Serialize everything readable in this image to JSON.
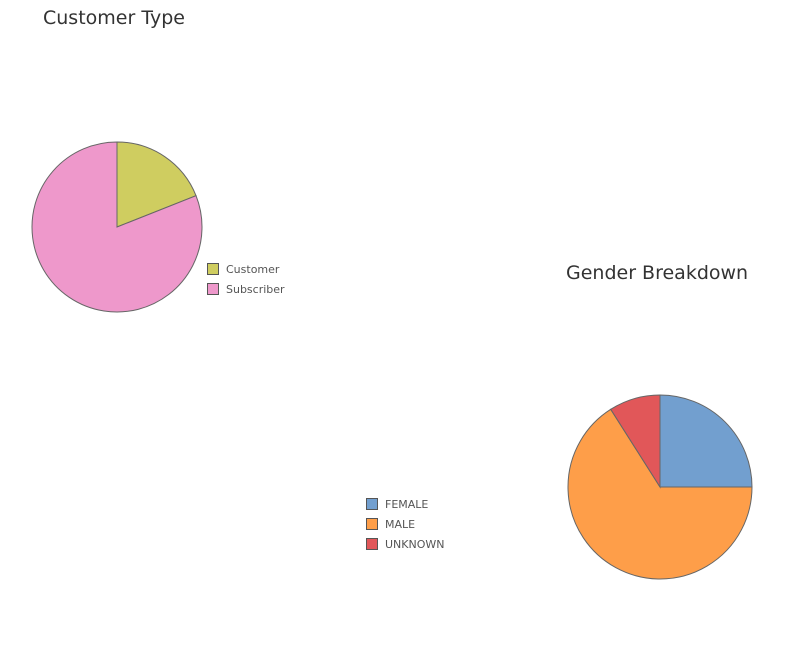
{
  "chart_data": [
    {
      "type": "pie",
      "title": "Customer Type",
      "slices": [
        {
          "label": "Customer",
          "value": 19,
          "color": "#cfcd60"
        },
        {
          "label": "Subscriber",
          "value": 81,
          "color": "#ee98cb"
        }
      ],
      "legend_placement": "right"
    },
    {
      "type": "pie",
      "title": "Gender Breakdown",
      "slices": [
        {
          "label": "FEMALE",
          "value": 25,
          "color": "#729fcf"
        },
        {
          "label": "MALE",
          "value": 66,
          "color": "#fe9e49"
        },
        {
          "label": "UNKNOWN",
          "value": 9,
          "color": "#e15759"
        }
      ],
      "legend_placement": "left"
    }
  ]
}
